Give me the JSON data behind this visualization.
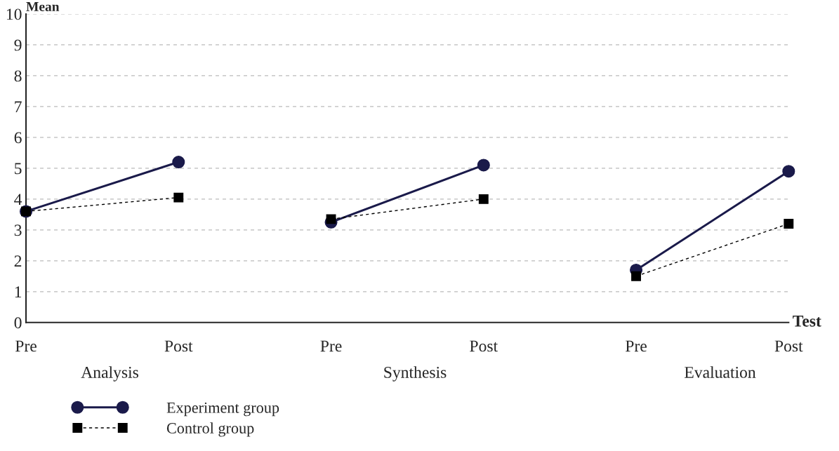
{
  "chart_data": {
    "type": "line",
    "ylabel": "Mean",
    "xlabel": "Test",
    "categories": [
      "Pre",
      "Post",
      "Pre",
      "Post",
      "Pre",
      "Post"
    ],
    "annotations": [
      "Analysis",
      "Synthesis",
      "Evaluation"
    ],
    "series": [
      {
        "name": "Experiment group",
        "color": "#1a1a4a",
        "marker": "circle",
        "line_style": "solid",
        "values": [
          3.6,
          5.2,
          null,
          null,
          null,
          null
        ]
      },
      {
        "color": "#1a1a4a",
        "marker": "circle",
        "line_style": "solid",
        "values": [
          null,
          null,
          3.25,
          5.1,
          null,
          null
        ]
      },
      {
        "color": "#1a1a4a",
        "marker": "circle",
        "line_style": "solid",
        "values": [
          null,
          null,
          null,
          null,
          1.7,
          4.9
        ]
      },
      {
        "name": "Control group",
        "color": "#000000",
        "marker": "square",
        "line_style": "dashed",
        "values": [
          3.6,
          4.05,
          null,
          null,
          null,
          null
        ]
      },
      {
        "color": "#000000",
        "marker": "square",
        "line_style": "dashed",
        "values": [
          null,
          null,
          3.35,
          4.0,
          null,
          null
        ]
      },
      {
        "color": "#000000",
        "marker": "square",
        "line_style": "dashed",
        "values": [
          null,
          null,
          null,
          null,
          1.5,
          3.2
        ]
      }
    ],
    "ylim": [
      0,
      10
    ],
    "yticks": [
      0,
      1,
      2,
      3,
      4,
      5,
      6,
      7,
      8,
      9,
      10
    ],
    "grid": "y",
    "legend": "bottom left"
  }
}
